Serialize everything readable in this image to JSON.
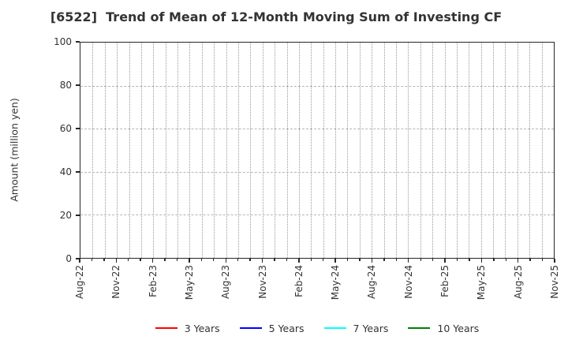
{
  "title": "[6522]  Trend of Mean of 12-Month Moving Sum of Investing CF",
  "chart_data": {
    "type": "line",
    "title": "[6522]  Trend of Mean of 12-Month Moving Sum of Investing CF",
    "xlabel": "",
    "ylabel": "Amount (million yen)",
    "ylim": [
      0,
      100
    ],
    "y_ticks": [
      0,
      20,
      40,
      60,
      80,
      100
    ],
    "x_tick_labels": [
      "Aug-22",
      "Nov-22",
      "Feb-23",
      "May-23",
      "Aug-23",
      "Nov-23",
      "Feb-24",
      "May-24",
      "Aug-24",
      "Nov-24",
      "Feb-25",
      "May-25",
      "Aug-25",
      "Nov-25"
    ],
    "x_minor_divisions_per_major": 3,
    "grid": true,
    "grid_style": {
      "horizontal": "dashed",
      "vertical": "dotted"
    },
    "legend_position": "bottom",
    "series": [
      {
        "name": "3 Years",
        "color": "#ff0000",
        "values": []
      },
      {
        "name": "5 Years",
        "color": "#0000ff",
        "values": []
      },
      {
        "name": "7 Years",
        "color": "#00ffff",
        "values": []
      },
      {
        "name": "10 Years",
        "color": "#008000",
        "values": []
      }
    ]
  }
}
